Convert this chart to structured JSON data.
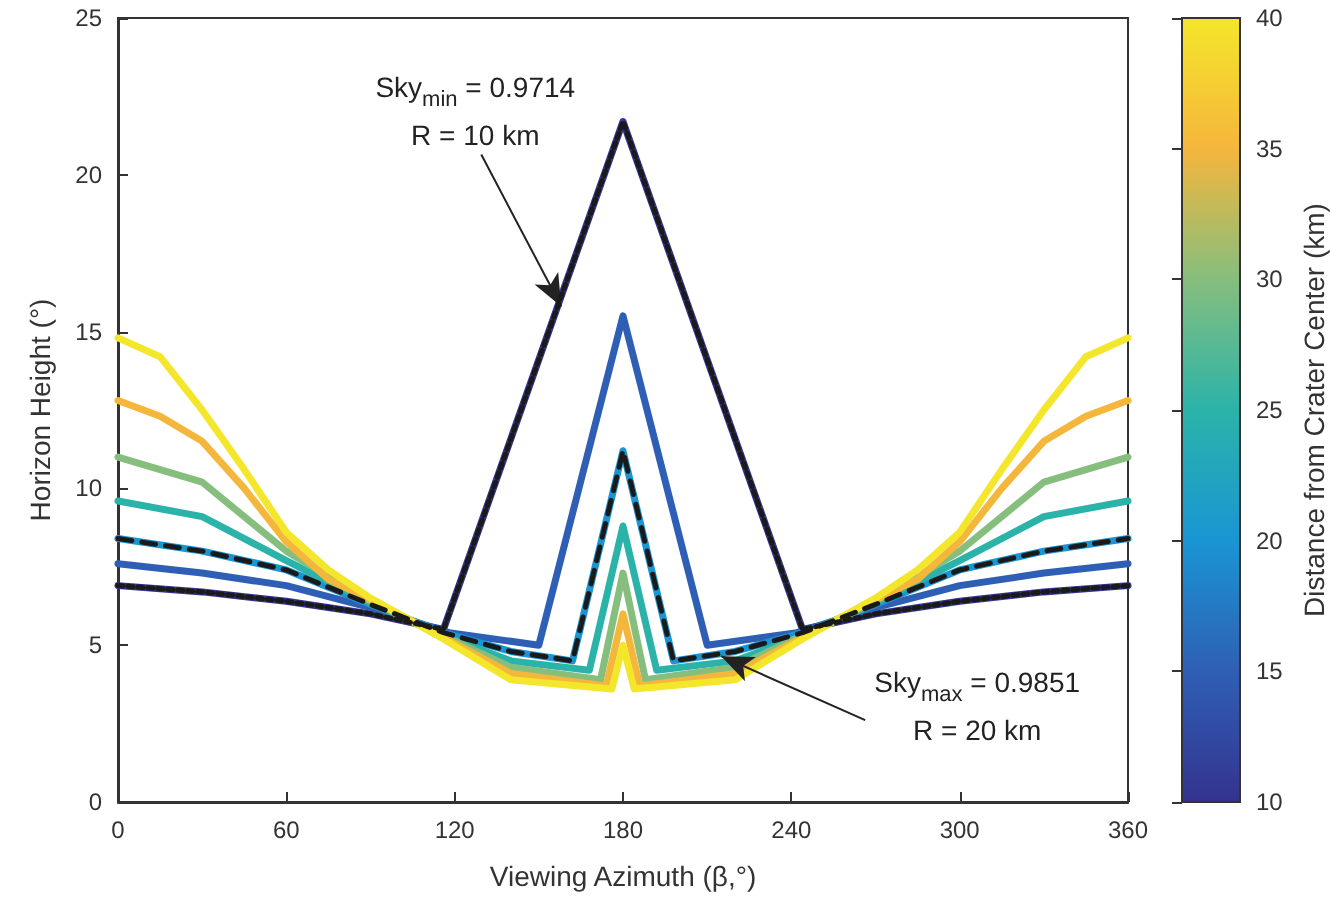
{
  "chart_data": {
    "type": "line",
    "xlabel": "Viewing Azimuth (β,°)",
    "ylabel": "Horizon Height (°)",
    "clabel": "Distance from Crater Center (km)",
    "xlim": [
      0,
      360
    ],
    "xticks": [
      0,
      60,
      120,
      180,
      240,
      300,
      360
    ],
    "ylim": [
      0,
      25
    ],
    "yticks": [
      0,
      5,
      10,
      15,
      20,
      25
    ],
    "clim": [
      10,
      40
    ],
    "cticks": [
      10,
      15,
      20,
      25,
      30,
      35,
      40
    ],
    "grid": false,
    "marker": "none",
    "series": [
      {
        "color": "#34338f",
        "x": [
          0,
          30,
          60,
          90,
          116,
          180,
          244,
          270,
          300,
          330,
          360
        ],
        "values": [
          6.9,
          6.7,
          6.4,
          6.0,
          5.5,
          21.7,
          5.5,
          6.0,
          6.4,
          6.7,
          6.9
        ]
      },
      {
        "color": "#2f5fb5",
        "x": [
          0,
          30,
          60,
          90,
          118,
          150,
          180,
          210,
          242,
          270,
          300,
          330,
          360
        ],
        "values": [
          7.6,
          7.3,
          6.9,
          6.2,
          5.4,
          5.0,
          15.5,
          5.0,
          5.4,
          6.2,
          6.9,
          7.3,
          7.6
        ]
      },
      {
        "color": "#1a95d3",
        "x": [
          0,
          30,
          60,
          90,
          116,
          140,
          162,
          180,
          198,
          220,
          244,
          270,
          300,
          330,
          360
        ],
        "values": [
          8.4,
          8.0,
          7.4,
          6.3,
          5.4,
          4.8,
          4.5,
          11.2,
          4.5,
          4.8,
          5.4,
          6.3,
          7.4,
          8.0,
          8.4
        ]
      },
      {
        "color": "#2bb3a9",
        "x": [
          0,
          30,
          60,
          90,
          116,
          140,
          168,
          180,
          192,
          220,
          244,
          270,
          300,
          330,
          360
        ],
        "values": [
          9.6,
          9.1,
          7.7,
          6.35,
          5.3,
          4.5,
          4.2,
          8.8,
          4.2,
          4.5,
          5.3,
          6.35,
          7.7,
          9.1,
          9.6
        ]
      },
      {
        "color": "#86be7e",
        "x": [
          0,
          30,
          60,
          90,
          116,
          140,
          172,
          180,
          188,
          220,
          244,
          270,
          300,
          330,
          360
        ],
        "values": [
          11.0,
          10.2,
          8.0,
          6.4,
          5.3,
          4.3,
          3.9,
          7.3,
          3.9,
          4.3,
          5.3,
          6.4,
          8.0,
          10.2,
          11.0
        ]
      },
      {
        "color": "#f5b63c",
        "x": [
          0,
          15,
          30,
          45,
          60,
          75,
          90,
          116,
          140,
          174,
          180,
          186,
          220,
          244,
          270,
          285,
          300,
          315,
          330,
          345,
          360
        ],
        "values": [
          12.8,
          12.3,
          11.5,
          10.0,
          8.3,
          7.1,
          6.45,
          5.25,
          4.1,
          3.7,
          6.0,
          3.7,
          4.1,
          5.25,
          6.45,
          7.1,
          8.3,
          10.0,
          11.5,
          12.3,
          12.8
        ]
      },
      {
        "color": "#f4e62a",
        "x": [
          0,
          15,
          30,
          45,
          60,
          75,
          90,
          116,
          140,
          176,
          180,
          184,
          220,
          244,
          270,
          285,
          300,
          315,
          330,
          345,
          360
        ],
        "values": [
          14.8,
          14.2,
          12.5,
          10.6,
          8.6,
          7.4,
          6.5,
          5.2,
          3.9,
          3.6,
          5.0,
          3.6,
          3.9,
          5.2,
          6.5,
          7.4,
          8.6,
          10.6,
          12.5,
          14.2,
          14.8
        ]
      },
      {
        "color": "#1a1a1a",
        "line_style": "dashed",
        "x": [
          0,
          30,
          60,
          90,
          116,
          140,
          162,
          180,
          198,
          220,
          244,
          270,
          300,
          330,
          360
        ],
        "values": [
          8.4,
          8.0,
          7.4,
          6.3,
          5.4,
          4.8,
          4.5,
          11.2,
          4.5,
          4.8,
          5.4,
          6.3,
          7.4,
          8.0,
          8.4
        ]
      },
      {
        "color": "#1a1a1a",
        "line_style": "dotted",
        "x": [
          0,
          30,
          60,
          90,
          116,
          180,
          244,
          270,
          300,
          330,
          360
        ],
        "values": [
          6.9,
          6.7,
          6.4,
          6.0,
          5.5,
          21.7,
          5.5,
          6.0,
          6.4,
          6.7,
          6.9
        ]
      }
    ],
    "annotations": [
      {
        "text": "Sky$_{min}$ = 0.9714\nR = 10 km",
        "x": 158,
        "y": 15.8
      },
      {
        "text": "Sky$_{max}$ = 0.9851\nR = 20 km",
        "x": 215,
        "y": 4.65
      }
    ]
  }
}
